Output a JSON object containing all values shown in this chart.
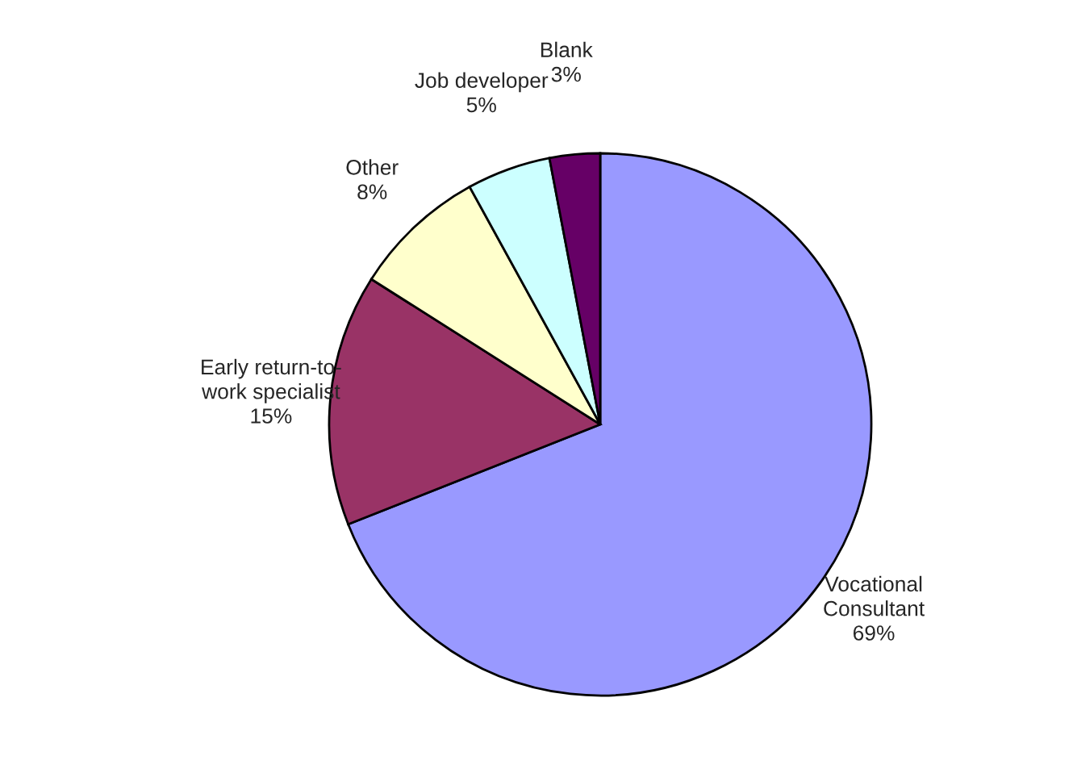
{
  "chart_data": {
    "type": "pie",
    "categories": [
      "Vocational\nConsultant",
      "Early return-to-\nwork specialist",
      "Other",
      "Job developer",
      "Blank"
    ],
    "values": [
      69,
      15,
      8,
      5,
      3
    ],
    "value_labels": [
      "69%",
      "15%",
      "8%",
      "5%",
      "3%"
    ],
    "colors": [
      "#9999ff",
      "#993366",
      "#ffffcc",
      "#ccffff",
      "#660066"
    ],
    "legend": false
  }
}
